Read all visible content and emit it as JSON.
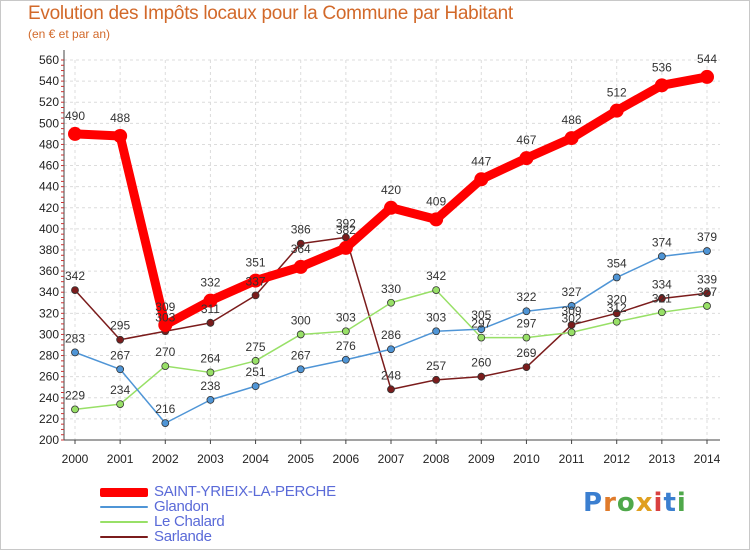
{
  "title": "Evolution des Impôts locaux pour la Commune par Habitant",
  "subtitle": "(en € et par an)",
  "logo": {
    "text": "Proxiti",
    "letter_colors": [
      "#3b7fd0",
      "#e07b2b",
      "#4fa84a",
      "#e0a020",
      "#d94040",
      "#3b7fd0",
      "#4fa84a"
    ]
  },
  "chart_data": {
    "type": "line",
    "title": "Evolution des Impôts locaux pour la Commune par Habitant",
    "ylabel": "(en € et par an)",
    "xlabel": "",
    "x": [
      "2000",
      "2001",
      "2002",
      "2003",
      "2004",
      "2005",
      "2006",
      "2007",
      "2008",
      "2009",
      "2010",
      "2011",
      "2012",
      "2013",
      "2014"
    ],
    "ylim": [
      200,
      560
    ],
    "yticks": [
      "200",
      "220",
      "240",
      "260",
      "280",
      "300",
      "320",
      "340",
      "360",
      "380",
      "400",
      "420",
      "440",
      "460",
      "480",
      "500",
      "520",
      "540",
      "560"
    ],
    "grid": true,
    "legend_position": "bottom-left",
    "series": [
      {
        "name": "SAINT-YRIEIX-LA-PERCHE",
        "color": "#ff0000",
        "values": [
          490,
          488,
          309,
          332,
          351,
          364,
          382,
          420,
          409,
          447,
          467,
          486,
          512,
          536,
          544
        ]
      },
      {
        "name": "Glandon",
        "color": "#4f95d6",
        "values": [
          283,
          267,
          216,
          238,
          251,
          267,
          276,
          286,
          303,
          305,
          322,
          327,
          354,
          374,
          379
        ]
      },
      {
        "name": "Le Chalard",
        "color": "#98e067",
        "values": [
          229,
          234,
          270,
          264,
          275,
          300,
          303,
          330,
          342,
          297,
          297,
          302,
          312,
          321,
          327
        ]
      },
      {
        "name": "Sarlande",
        "color": "#7b1c1c",
        "values": [
          342,
          295,
          303,
          311,
          337,
          386,
          392,
          248,
          257,
          260,
          269,
          309,
          320,
          334,
          339
        ]
      }
    ]
  }
}
